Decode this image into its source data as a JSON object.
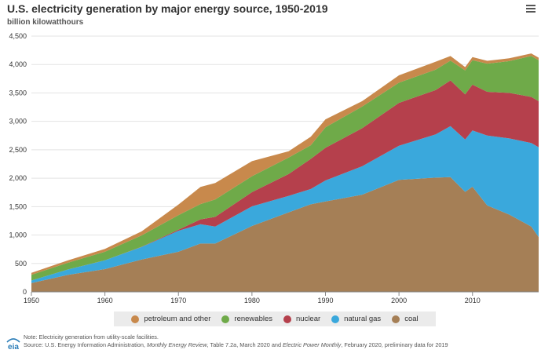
{
  "header": {
    "title": "U.S. electricity generation by major energy source, 1950-2019",
    "unit": "billion kilowatthours"
  },
  "legend": [
    {
      "label": "petroleum and other",
      "color": "#c8894c"
    },
    {
      "label": "renewables",
      "color": "#6faa49"
    },
    {
      "label": "nuclear",
      "color": "#b5404c"
    },
    {
      "label": "natural gas",
      "color": "#3aa8dc"
    },
    {
      "label": "coal",
      "color": "#a57f56"
    }
  ],
  "notes": {
    "note": "Note: Electricity generation from utility-scale facilities.",
    "source_prefix": "Source: U.S. Energy Information Administration, ",
    "source_pub1": "Monthly Energy Review",
    "source_mid": ", Table 7.2a, March 2020 and ",
    "source_pub2": "Electric Power Monthly",
    "source_suffix": ", February 2020, preliminary data for 2019"
  },
  "logo": {
    "text": "eia"
  },
  "chart_data": {
    "type": "area",
    "stacked": true,
    "title": "U.S. electricity generation by major energy source, 1950-2019",
    "ylabel": "billion kilowatthours",
    "xlim": [
      1950,
      2019
    ],
    "ylim": [
      0,
      4500
    ],
    "x_ticks": [
      1950,
      1960,
      1970,
      1980,
      1990,
      2000,
      2010
    ],
    "y_ticks": [
      0,
      500,
      1000,
      1500,
      2000,
      2500,
      3000,
      3500,
      4000,
      4500
    ],
    "y_tick_labels": [
      "0",
      "500",
      "1,000",
      "1,500",
      "2,000",
      "2,500",
      "3,000",
      "3,500",
      "4,000",
      "4,500"
    ],
    "grid": true,
    "legend_position": "bottom",
    "x": [
      1950,
      1955,
      1960,
      1965,
      1970,
      1973,
      1975,
      1980,
      1985,
      1988,
      1990,
      1995,
      2000,
      2005,
      2007,
      2009,
      2010,
      2012,
      2015,
      2018,
      2019
    ],
    "series": [
      {
        "name": "coal",
        "color": "#a57f56",
        "values": [
          155,
          300,
          400,
          570,
          705,
          850,
          850,
          1160,
          1400,
          1540,
          1590,
          1710,
          1970,
          2010,
          2020,
          1760,
          1850,
          1520,
          1360,
          1150,
          965
        ]
      },
      {
        "name": "natural gas",
        "color": "#3aa8dc",
        "values": [
          45,
          95,
          155,
          220,
          370,
          340,
          300,
          345,
          290,
          270,
          370,
          500,
          600,
          760,
          895,
          920,
          990,
          1230,
          1340,
          1470,
          1580
        ]
      },
      {
        "name": "nuclear",
        "color": "#b5404c",
        "values": [
          0,
          0,
          1,
          4,
          20,
          85,
          170,
          250,
          385,
          530,
          575,
          670,
          755,
          780,
          805,
          795,
          805,
          770,
          800,
          810,
          810
        ]
      },
      {
        "name": "renewables",
        "color": "#6faa49",
        "values": [
          100,
          120,
          150,
          200,
          255,
          270,
          305,
          280,
          290,
          240,
          360,
          380,
          355,
          360,
          350,
          420,
          430,
          495,
          560,
          720,
          720
        ]
      },
      {
        "name": "petroleum and other",
        "color": "#c8894c",
        "values": [
          35,
          40,
          50,
          70,
          185,
          300,
          290,
          265,
          110,
          150,
          140,
          95,
          130,
          140,
          80,
          60,
          55,
          50,
          50,
          45,
          45
        ]
      }
    ]
  }
}
